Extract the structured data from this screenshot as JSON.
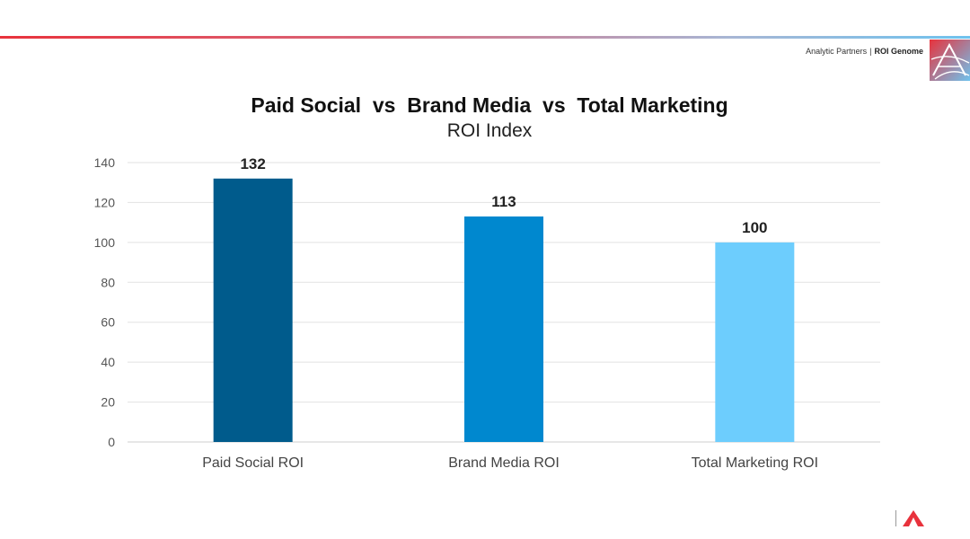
{
  "header": {
    "brand_company": "Analytic Partners",
    "brand_separator": "|",
    "brand_product": "ROI Genome"
  },
  "chart_data": {
    "type": "bar",
    "title": "Paid Social  vs  Brand Media  vs  Total Marketing",
    "subtitle": "ROI Index",
    "categories": [
      "Paid Social ROI",
      "Brand Media ROI",
      "Total Marketing ROI"
    ],
    "values": [
      132,
      113,
      100
    ],
    "data_labels": [
      "132",
      "113",
      "100"
    ],
    "colors": [
      "#005b8c",
      "#0088cf",
      "#6dcdfd"
    ],
    "ylim": [
      0,
      140
    ],
    "yticks": [
      0,
      20,
      40,
      60,
      80,
      100,
      120,
      140
    ],
    "ytick_labels": [
      "0",
      "20",
      "40",
      "60",
      "80",
      "100",
      "120",
      "140"
    ],
    "xlabel": "",
    "ylabel": "",
    "grid": true,
    "legend": "none"
  }
}
